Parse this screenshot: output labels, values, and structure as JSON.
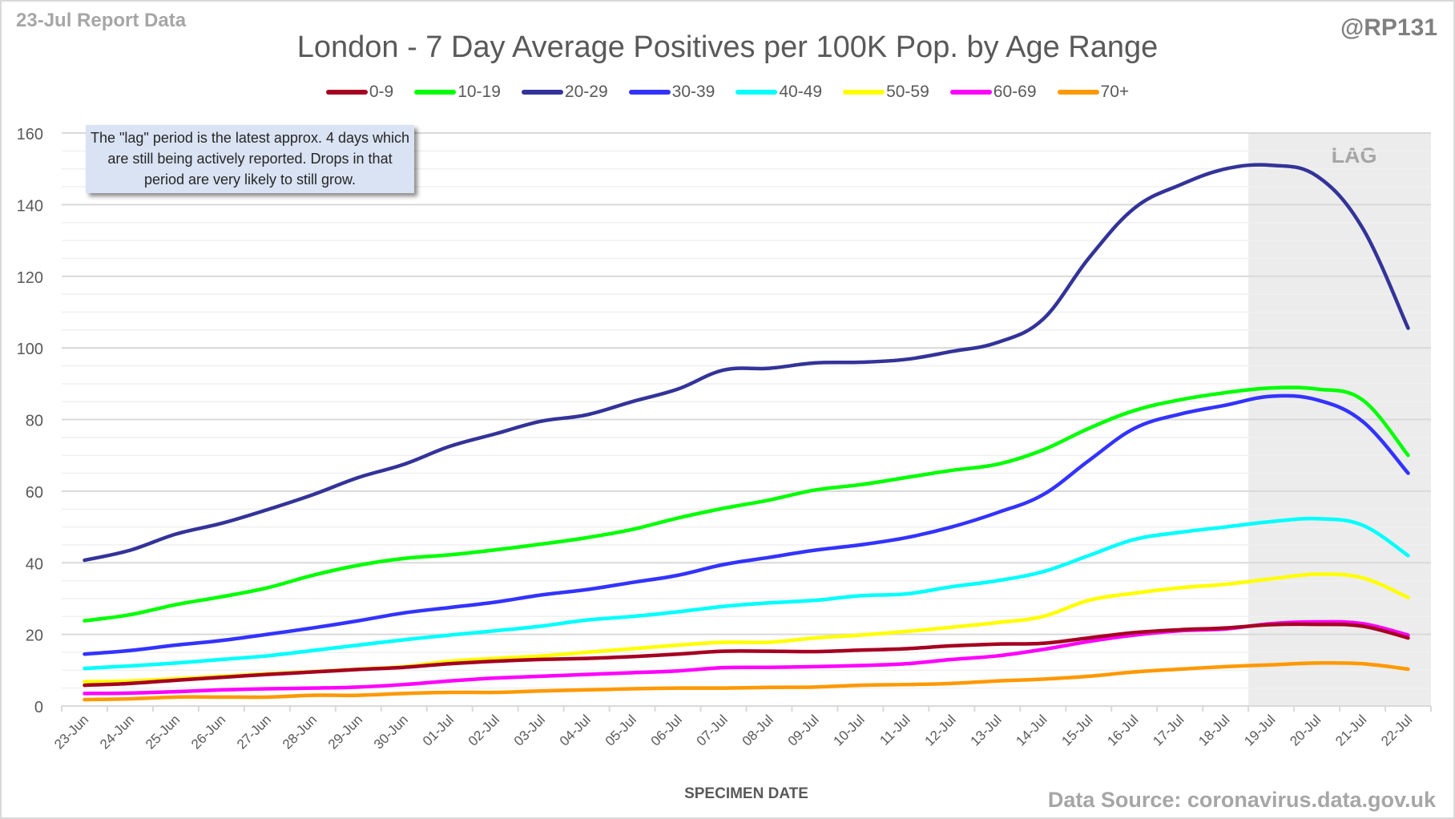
{
  "header": {
    "report_label": "23-Jul Report Data",
    "handle": "@RP131",
    "source": "Data Source: coronavirus.data.gov.uk"
  },
  "chart_data": {
    "type": "line",
    "title": "London - 7 Day Average Positives per 100K Pop. by Age Range",
    "xlabel": "SPECIMEN DATE",
    "ylabel": "",
    "ylim": [
      0,
      160
    ],
    "yticks": [
      0,
      20,
      40,
      60,
      80,
      100,
      120,
      140,
      160
    ],
    "grid": true,
    "legend_position": "top",
    "annotation": "The \"lag\" period is the latest approx. 4 days which are still being actively reported.  Drops in that period are very likely to still grow.",
    "lag_label": "LAG",
    "lag_start_category": "19-Jul",
    "categories": [
      "23-Jun",
      "24-Jun",
      "25-Jun",
      "26-Jun",
      "27-Jun",
      "28-Jun",
      "29-Jun",
      "30-Jun",
      "01-Jul",
      "02-Jul",
      "03-Jul",
      "04-Jul",
      "05-Jul",
      "06-Jul",
      "07-Jul",
      "08-Jul",
      "09-Jul",
      "10-Jul",
      "11-Jul",
      "12-Jul",
      "13-Jul",
      "14-Jul",
      "15-Jul",
      "16-Jul",
      "17-Jul",
      "18-Jul",
      "19-Jul",
      "20-Jul",
      "21-Jul",
      "22-Jul"
    ],
    "series": [
      {
        "name": "0-9",
        "color": "#a50021",
        "values": [
          5.8,
          6.3,
          7.2,
          8.0,
          8.8,
          9.5,
          10.2,
          10.8,
          11.8,
          12.5,
          13.0,
          13.3,
          13.8,
          14.5,
          15.3,
          15.3,
          15.2,
          15.6,
          16.0,
          16.8,
          17.3,
          17.5,
          19.0,
          20.5,
          21.3,
          21.8,
          22.7,
          22.8,
          22.3,
          19.0
        ]
      },
      {
        "name": "10-19",
        "color": "#00ff00",
        "values": [
          23.8,
          25.5,
          28.3,
          30.5,
          33.0,
          36.5,
          39.3,
          41.2,
          42.2,
          43.6,
          45.2,
          47.0,
          49.3,
          52.5,
          55.2,
          57.5,
          60.3,
          61.8,
          63.8,
          65.8,
          67.5,
          71.5,
          77.5,
          82.5,
          85.5,
          87.5,
          88.8,
          88.5,
          85.5,
          70.0
        ]
      },
      {
        "name": "20-29",
        "color": "#333399",
        "values": [
          40.7,
          43.5,
          48.0,
          51.0,
          54.8,
          59.0,
          63.8,
          67.5,
          72.5,
          76.0,
          79.5,
          81.3,
          85.0,
          88.5,
          93.8,
          94.3,
          95.8,
          96.0,
          96.8,
          99.0,
          101.5,
          108.0,
          125.0,
          139.0,
          145.5,
          150.0,
          151.0,
          148.0,
          133.5,
          105.5
        ]
      },
      {
        "name": "30-39",
        "color": "#3333ff",
        "values": [
          14.5,
          15.5,
          17.0,
          18.3,
          20.0,
          21.8,
          23.8,
          26.0,
          27.5,
          29.0,
          31.0,
          32.5,
          34.5,
          36.5,
          39.5,
          41.5,
          43.5,
          45.0,
          47.0,
          50.0,
          54.0,
          59.0,
          68.5,
          77.5,
          81.5,
          84.0,
          86.5,
          85.5,
          79.5,
          65.0
        ]
      },
      {
        "name": "40-49",
        "color": "#00ffff",
        "values": [
          10.5,
          11.2,
          12.0,
          13.0,
          14.0,
          15.5,
          17.0,
          18.5,
          19.8,
          21.0,
          22.3,
          24.0,
          25.0,
          26.3,
          27.8,
          28.8,
          29.5,
          30.8,
          31.3,
          33.3,
          35.0,
          37.5,
          42.0,
          46.5,
          48.5,
          50.0,
          51.5,
          52.3,
          50.5,
          42.0
        ]
      },
      {
        "name": "50-59",
        "color": "#ffff00",
        "values": [
          6.8,
          7.0,
          7.6,
          8.3,
          9.0,
          9.6,
          10.3,
          11.0,
          12.5,
          13.3,
          14.0,
          15.0,
          16.0,
          17.0,
          17.8,
          17.8,
          19.0,
          19.8,
          20.8,
          22.0,
          23.3,
          25.0,
          29.5,
          31.5,
          33.0,
          34.0,
          35.5,
          36.8,
          35.8,
          30.3
        ]
      },
      {
        "name": "60-69",
        "color": "#ff00ff",
        "values": [
          3.5,
          3.6,
          4.0,
          4.5,
          4.8,
          5.0,
          5.3,
          6.0,
          7.0,
          7.8,
          8.3,
          8.8,
          9.3,
          9.8,
          10.7,
          10.8,
          11.0,
          11.3,
          11.8,
          13.0,
          14.0,
          15.8,
          18.0,
          19.8,
          21.0,
          21.5,
          23.0,
          23.5,
          23.0,
          19.8
        ]
      },
      {
        "name": "70+",
        "color": "#ff9900",
        "values": [
          1.8,
          2.0,
          2.5,
          2.5,
          2.5,
          3.0,
          3.0,
          3.5,
          3.8,
          3.8,
          4.2,
          4.5,
          4.8,
          5.0,
          5.0,
          5.2,
          5.3,
          5.8,
          6.0,
          6.3,
          7.0,
          7.5,
          8.3,
          9.5,
          10.3,
          11.0,
          11.5,
          12.0,
          11.8,
          10.3
        ]
      }
    ]
  }
}
